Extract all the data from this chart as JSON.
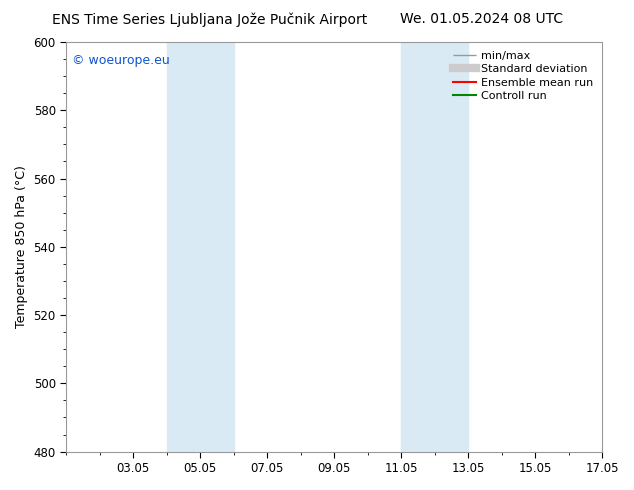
{
  "title_left": "ENS Time Series Ljubljana Jože Pučnik Airport",
  "title_right": "We. 01.05.2024 08 UTC",
  "ylabel": "Temperature 850 hPa (°C)",
  "ylim": [
    480,
    600
  ],
  "yticks": [
    480,
    500,
    520,
    540,
    560,
    580,
    600
  ],
  "xlim": [
    0,
    16
  ],
  "xtick_labels": [
    "03.05",
    "05.05",
    "07.05",
    "09.05",
    "11.05",
    "13.05",
    "15.05",
    "17.05"
  ],
  "xtick_positions": [
    2,
    4,
    6,
    8,
    10,
    12,
    14,
    16
  ],
  "shading_bands": [
    {
      "start": 3,
      "end": 5
    },
    {
      "start": 10,
      "end": 12
    }
  ],
  "shading_color": "#daeaf5",
  "bg_color": "#ffffff",
  "watermark": "© woeurope.eu",
  "watermark_color": "#1155cc",
  "legend_entries": [
    {
      "label": "min/max",
      "color": "#999999",
      "lw": 1.0,
      "type": "minmax"
    },
    {
      "label": "Standard deviation",
      "color": "#cccccc",
      "lw": 6,
      "type": "line"
    },
    {
      "label": "Ensemble mean run",
      "color": "#ff0000",
      "lw": 1.5,
      "type": "line"
    },
    {
      "label": "Controll run",
      "color": "#008800",
      "lw": 1.5,
      "type": "line"
    }
  ],
  "title_fontsize": 10,
  "tick_fontsize": 8.5,
  "ylabel_fontsize": 9,
  "legend_fontsize": 8,
  "watermark_fontsize": 9
}
